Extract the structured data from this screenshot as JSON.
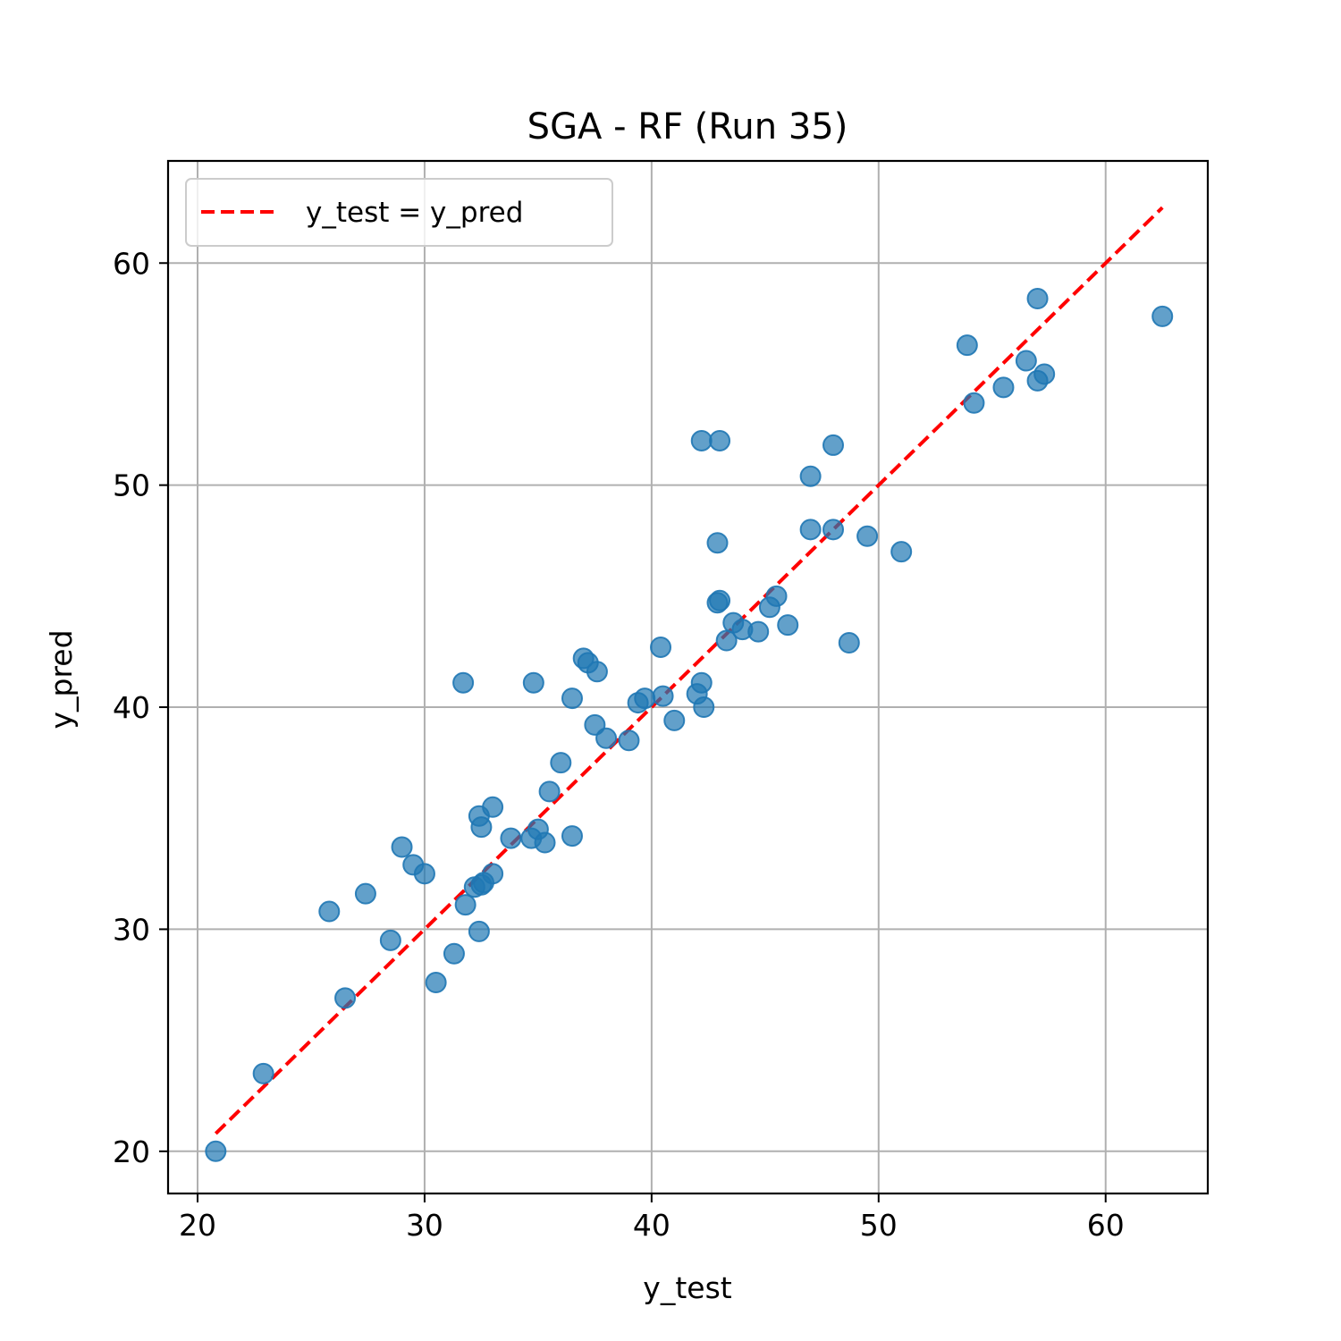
{
  "chart_data": {
    "type": "scatter",
    "title": "SGA - RF (Run 35)",
    "xlabel": "y_test",
    "ylabel": "y_pred",
    "xlim": [
      18.7,
      64.5
    ],
    "ylim": [
      18.1,
      64.6
    ],
    "xticks": [
      20,
      30,
      40,
      50,
      60
    ],
    "yticks": [
      20,
      30,
      40,
      50,
      60
    ],
    "grid": true,
    "legend": {
      "placement": "top-left",
      "label": "y_test = y_pred"
    },
    "colors": {
      "points": "#1f77b4",
      "reference_line": "#ff0000",
      "grid": "#b0b0b0"
    },
    "reference_line": {
      "x": [
        20.8,
        62.5
      ],
      "y": [
        20.8,
        62.5
      ]
    },
    "series": [
      {
        "x": [
          20.8,
          22.9,
          25.8,
          26.5,
          27.4,
          28.5,
          29.0,
          29.5,
          30.0,
          30.5,
          31.3,
          31.7,
          31.8,
          32.2,
          32.4,
          32.4,
          32.5,
          32.5,
          32.6,
          33.0,
          33.0,
          33.8,
          34.7,
          35.0,
          35.3,
          35.5,
          36.0,
          36.5,
          36.5,
          34.8,
          37.0,
          37.2,
          37.5,
          37.6,
          38.0,
          39.0,
          39.4,
          39.7,
          40.4,
          40.5,
          41.0,
          42.0,
          42.2,
          42.3,
          42.2,
          43.0,
          42.9,
          43.0,
          42.9,
          43.3,
          43.6,
          44.0,
          44.7,
          45.2,
          45.5,
          46.0,
          47.0,
          47.0,
          48.0,
          48.0,
          48.7,
          49.5,
          51.0,
          53.9,
          54.2,
          55.5,
          56.5,
          57.0,
          57.0,
          57.3,
          62.5
        ],
        "y": [
          20.0,
          23.5,
          30.8,
          26.9,
          31.6,
          29.5,
          33.7,
          32.9,
          32.5,
          27.6,
          28.9,
          41.1,
          31.1,
          31.9,
          29.9,
          35.1,
          34.6,
          32.0,
          32.1,
          32.5,
          35.5,
          34.1,
          34.1,
          34.5,
          33.9,
          36.2,
          37.5,
          40.4,
          34.2,
          41.1,
          42.2,
          42.0,
          39.2,
          41.6,
          38.6,
          38.5,
          40.2,
          40.4,
          42.7,
          40.5,
          39.4,
          40.6,
          52.0,
          40.0,
          41.1,
          52.0,
          47.4,
          44.8,
          44.7,
          43.0,
          43.8,
          43.5,
          43.4,
          44.5,
          45.0,
          43.7,
          50.4,
          48.0,
          51.8,
          48.0,
          42.9,
          47.7,
          47.0,
          56.3,
          53.7,
          54.4,
          55.6,
          58.4,
          54.7,
          55.0,
          57.6
        ]
      }
    ]
  }
}
